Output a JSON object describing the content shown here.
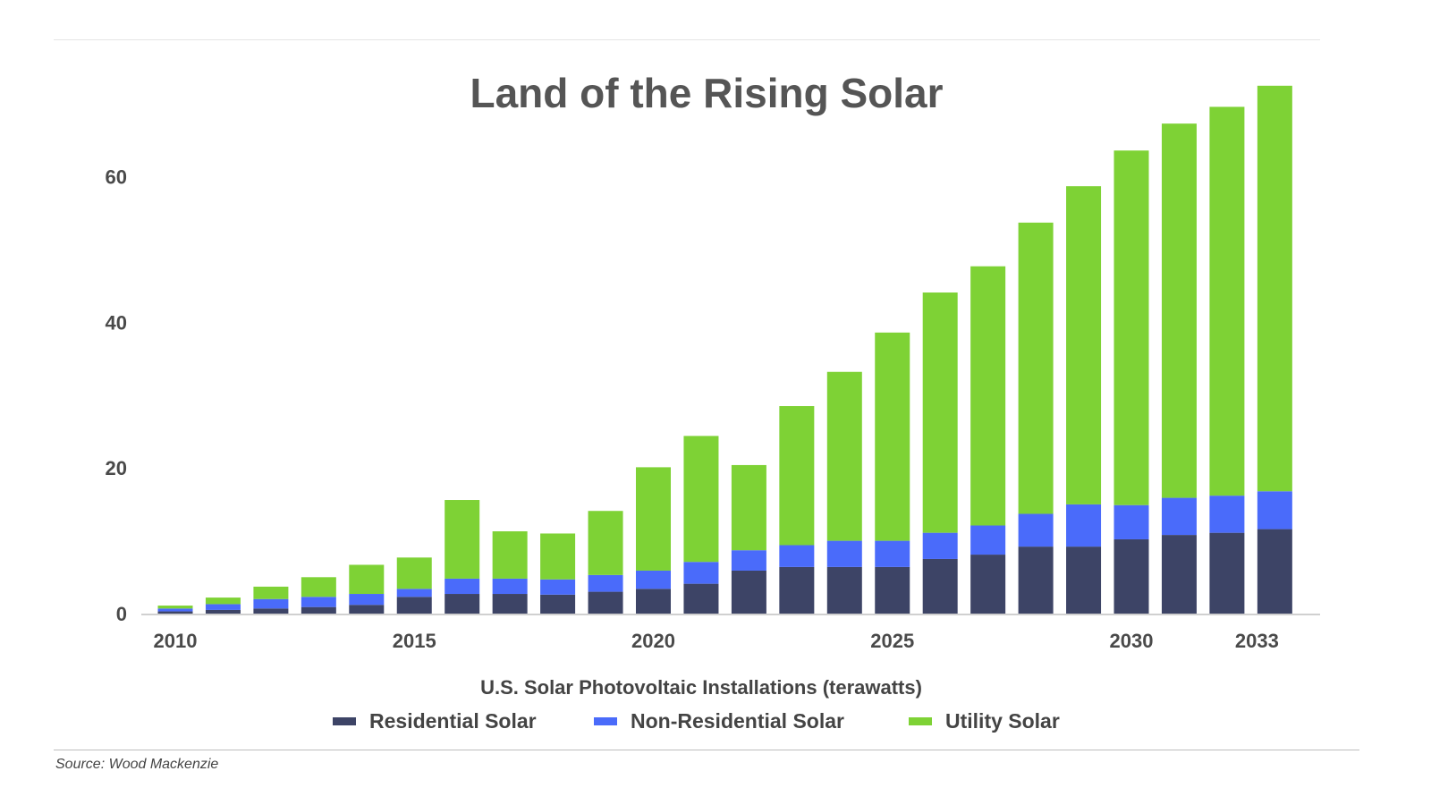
{
  "source": "Source: Wood Mackenzie",
  "colors": {
    "residential": "#3d4466",
    "non_residential": "#4a6bfa",
    "utility": "#7ed235",
    "title": "#555555",
    "text": "#444444"
  },
  "chart_data": {
    "type": "bar",
    "stacked": true,
    "title": "Land of the Rising Solar",
    "xlabel": "U.S. Solar Photovoltaic Installations (terawatts)",
    "ylabel": "",
    "ylim": [
      0,
      72
    ],
    "yticks": [
      0,
      20,
      40,
      60
    ],
    "x_tick_labels": [
      "2010",
      "2015",
      "2020",
      "2025",
      "2030",
      "2033"
    ],
    "grid": false,
    "legend_position": "bottom",
    "categories": [
      "2010",
      "2011",
      "2012",
      "2013",
      "2014",
      "2015",
      "2016",
      "2017",
      "2018",
      "2019",
      "2020",
      "2021",
      "2022",
      "2023",
      "2024",
      "2025",
      "2026",
      "2027",
      "2028",
      "2029",
      "2030",
      "2031",
      "2032",
      "2033"
    ],
    "series": [
      {
        "name": "Residential Solar",
        "color": "#3d4466",
        "values": [
          0.3,
          0.5,
          0.7,
          0.9,
          1.2,
          2.3,
          2.7,
          2.7,
          2.6,
          3.0,
          3.4,
          4.1,
          5.9,
          6.4,
          6.4,
          6.4,
          7.5,
          8.1,
          9.2,
          9.2,
          10.2,
          10.8,
          11.1,
          11.6
        ],
        "name_color": "residential"
      },
      {
        "name": "Non-Residential Solar",
        "color": "#4a6bfa",
        "values": [
          0.4,
          0.8,
          1.3,
          1.4,
          1.5,
          1.1,
          2.1,
          2.1,
          2.1,
          2.3,
          2.5,
          3.0,
          2.8,
          3.0,
          3.6,
          3.6,
          3.6,
          4.0,
          4.5,
          5.8,
          4.7,
          5.1,
          5.1,
          5.2
        ]
      },
      {
        "name": "Utility Solar",
        "color": "#7ed235",
        "values": [
          0.4,
          0.9,
          1.7,
          2.7,
          4.0,
          4.3,
          10.8,
          6.5,
          6.3,
          8.8,
          14.2,
          17.3,
          11.7,
          19.1,
          23.2,
          28.6,
          33.0,
          35.6,
          40.0,
          43.7,
          48.7,
          51.4,
          53.4,
          55.7
        ]
      }
    ]
  }
}
